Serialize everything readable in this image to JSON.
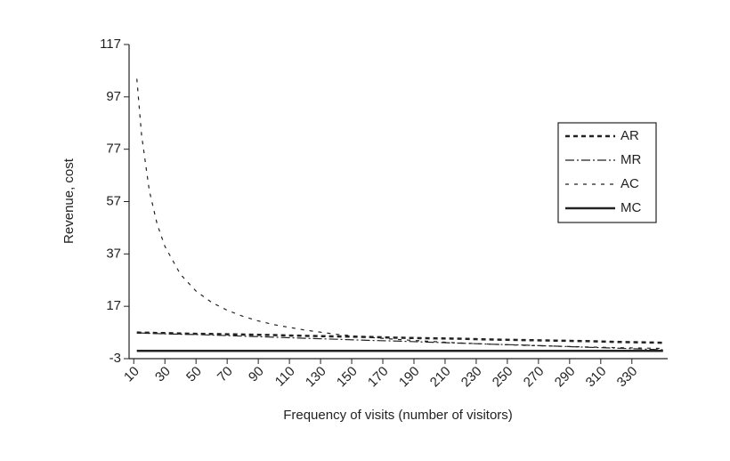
{
  "chart_data": {
    "type": "line",
    "x_label": "Frequency of visits (number of visitors)",
    "y_label": "Revenue, cost",
    "x": [
      12,
      15,
      20,
      25,
      30,
      40,
      50,
      60,
      70,
      80,
      90,
      100,
      120,
      140,
      160,
      180,
      200,
      220,
      240,
      260,
      280,
      300,
      320,
      340,
      350
    ],
    "series": [
      {
        "name": "AR",
        "color": "#222222",
        "dash": "5,4",
        "width": 2.5,
        "values": [
          7.0,
          6.9,
          6.9,
          6.8,
          6.8,
          6.6,
          6.5,
          6.4,
          6.3,
          6.2,
          6.1,
          6.0,
          5.7,
          5.5,
          5.3,
          5.0,
          4.8,
          4.6,
          4.3,
          4.1,
          3.9,
          3.7,
          3.4,
          3.2,
          3.1
        ]
      },
      {
        "name": "MR",
        "color": "#222222",
        "dash": "10,3,2,3",
        "width": 1.2,
        "values": [
          6.9,
          6.8,
          6.7,
          6.6,
          6.5,
          6.3,
          6.2,
          6.0,
          5.8,
          5.6,
          5.4,
          5.2,
          4.8,
          4.4,
          4.0,
          3.7,
          3.3,
          2.9,
          2.5,
          2.2,
          1.8,
          1.4,
          1.0,
          0.6,
          0.4
        ]
      },
      {
        "name": "AC",
        "color": "#222222",
        "dash": "4,6",
        "width": 1.2,
        "values": [
          103.9,
          82.5,
          61.2,
          48.4,
          39.9,
          29.2,
          22.8,
          18.5,
          15.5,
          13.2,
          11.4,
          10.0,
          7.9,
          6.3,
          5.2,
          4.3,
          3.6,
          3.0,
          2.5,
          2.1,
          1.8,
          1.5,
          1.2,
          1.0,
          0.9
        ]
      },
      {
        "name": "MC",
        "color": "#222222",
        "dash": "none",
        "width": 2.5,
        "values": [
          0,
          0,
          0,
          0,
          0,
          0,
          0,
          0,
          0,
          0,
          0,
          0,
          0,
          0,
          0,
          0,
          0,
          0,
          0,
          0,
          0,
          0,
          0,
          0,
          0
        ]
      }
    ],
    "xlim": [
      7,
      353
    ],
    "xticks": [
      10,
      30,
      50,
      70,
      90,
      110,
      130,
      150,
      170,
      190,
      210,
      230,
      250,
      270,
      290,
      310,
      330
    ],
    "ylim": [
      -3,
      117
    ],
    "yticks": [
      -3,
      17,
      37,
      57,
      77,
      97,
      117
    ],
    "grid": false,
    "legend": "upper right"
  }
}
